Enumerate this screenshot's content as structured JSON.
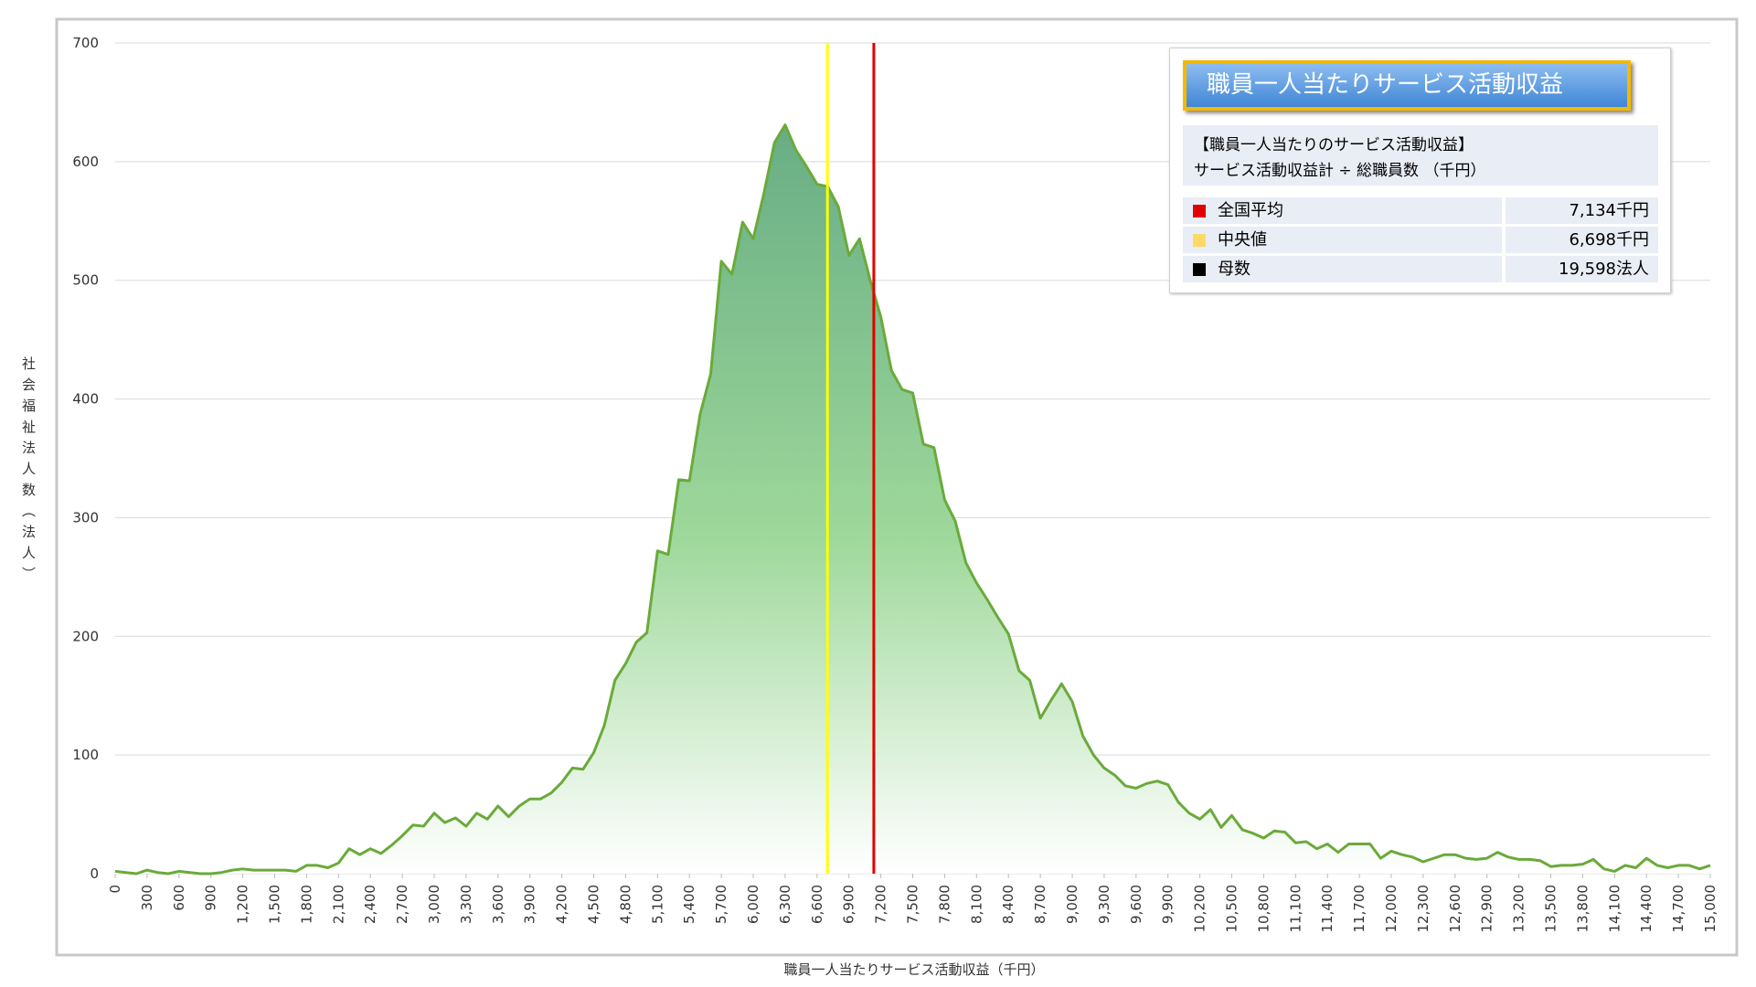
{
  "chart_data": {
    "type": "area",
    "x_label": "職員一人当たりサービス活動収益（千円）",
    "y_label": "社会福祉法人数（法人）",
    "x": [
      0,
      100,
      200,
      300,
      400,
      500,
      600,
      700,
      800,
      900,
      1000,
      1100,
      1200,
      1300,
      1400,
      1500,
      1600,
      1700,
      1800,
      1900,
      2000,
      2100,
      2200,
      2300,
      2400,
      2500,
      2600,
      2700,
      2800,
      2900,
      3000,
      3100,
      3200,
      3300,
      3400,
      3500,
      3600,
      3700,
      3800,
      3900,
      4000,
      4100,
      4200,
      4300,
      4400,
      4500,
      4600,
      4700,
      4800,
      4900,
      5000,
      5100,
      5200,
      5300,
      5400,
      5500,
      5600,
      5700,
      5800,
      5900,
      6000,
      6100,
      6200,
      6300,
      6400,
      6500,
      6600,
      6700,
      6800,
      6900,
      7000,
      7100,
      7200,
      7300,
      7400,
      7500,
      7600,
      7700,
      7800,
      7900,
      8000,
      8100,
      8200,
      8300,
      8400,
      8500,
      8600,
      8700,
      8800,
      8900,
      9000,
      9100,
      9200,
      9300,
      9400,
      9500,
      9600,
      9700,
      9800,
      9900,
      10000,
      10100,
      10200,
      10300,
      10400,
      10500,
      10600,
      10700,
      10800,
      10900,
      11000,
      11100,
      11200,
      11300,
      11400,
      11500,
      11600,
      11700,
      11800,
      11900,
      12000,
      12100,
      12200,
      12300,
      12400,
      12500,
      12600,
      12700,
      12800,
      12900,
      13000,
      13100,
      13200,
      13300,
      13400,
      13500,
      13600,
      13700,
      13800,
      13900,
      14000,
      14100,
      14200,
      14300,
      14400,
      14500,
      14600,
      14700,
      14800,
      14900,
      15000
    ],
    "values": [
      2,
      1,
      0,
      3,
      1,
      0,
      2,
      1,
      0,
      0,
      1,
      3,
      4,
      3,
      3,
      3,
      3,
      2,
      7,
      7,
      5,
      9,
      21,
      16,
      21,
      17,
      24,
      32,
      41,
      40,
      51,
      43,
      47,
      40,
      51,
      46,
      57,
      48,
      57,
      63,
      63,
      68,
      77,
      89,
      88,
      102,
      125,
      163,
      177,
      195,
      203,
      272,
      269,
      332,
      331,
      387,
      421,
      516,
      505,
      549,
      535,
      573,
      616,
      631,
      610,
      596,
      581,
      579,
      562,
      521,
      535,
      500,
      469,
      424,
      408,
      405,
      362,
      359,
      315,
      297,
      262,
      245,
      231,
      216,
      202,
      171,
      163,
      131,
      146,
      160,
      145,
      116,
      100,
      89,
      83,
      74,
      72,
      76,
      78,
      75,
      60,
      51,
      46,
      54,
      39,
      49,
      37,
      34,
      30,
      36,
      35,
      26,
      27,
      21,
      25,
      18,
      25,
      25,
      25,
      13,
      19,
      16,
      14,
      10,
      13,
      16,
      16,
      13,
      12,
      13,
      18,
      14,
      12,
      12,
      11,
      6,
      7,
      7,
      8,
      12,
      4,
      2,
      7,
      5,
      13,
      7,
      5,
      7,
      7,
      4,
      7
    ],
    "color": "#6aaa3a",
    "xlim": [
      0,
      15000
    ],
    "ylim": [
      0,
      700
    ],
    "yticks": [
      0,
      100,
      200,
      300,
      400,
      500,
      600,
      700
    ],
    "xticks": [
      0,
      300,
      600,
      900,
      {
        "value": 1200,
        "label": "1,200"
      },
      {
        "value": 1500,
        "label": "1,500"
      },
      {
        "value": 1800,
        "label": "1,800"
      },
      {
        "value": 2100,
        "label": "2,100"
      },
      {
        "value": 2400,
        "label": "2,400"
      },
      {
        "value": 2700,
        "label": "2,700"
      },
      {
        "value": 3000,
        "label": "3,000"
      },
      {
        "value": 3300,
        "label": "3,300"
      },
      {
        "value": 3600,
        "label": "3,600"
      },
      {
        "value": 3900,
        "label": "3,900"
      },
      {
        "value": 4200,
        "label": "4,200"
      },
      {
        "value": 4500,
        "label": "4,500"
      },
      {
        "value": 4800,
        "label": "4,800"
      },
      {
        "value": 5100,
        "label": "5,100"
      },
      {
        "value": 5400,
        "label": "5,400"
      },
      {
        "value": 5700,
        "label": "5,700"
      },
      {
        "value": 6000,
        "label": "6,000"
      },
      {
        "value": 6300,
        "label": "6,300"
      },
      {
        "value": 6600,
        "label": "6,600"
      },
      {
        "value": 6900,
        "label": "6,900"
      },
      {
        "value": 7200,
        "label": "7,200"
      },
      {
        "value": 7500,
        "label": "7,500"
      },
      {
        "value": 7800,
        "label": "7,800"
      },
      {
        "value": 8100,
        "label": "8,100"
      },
      {
        "value": 8400,
        "label": "8,400"
      },
      {
        "value": 8700,
        "label": "8,700"
      },
      {
        "value": 9000,
        "label": "9,000"
      },
      {
        "value": 9300,
        "label": "9,300"
      },
      {
        "value": 9600,
        "label": "9,600"
      },
      {
        "value": 9900,
        "label": "9,900"
      },
      {
        "value": 10200,
        "label": "10,200"
      },
      {
        "value": 10500,
        "label": "10,500"
      },
      {
        "value": 10800,
        "label": "10,800"
      },
      {
        "value": 11100,
        "label": "11,100"
      },
      {
        "value": 11400,
        "label": "11,400"
      },
      {
        "value": 11700,
        "label": "11,700"
      },
      {
        "value": 12000,
        "label": "12,000"
      },
      {
        "value": 12300,
        "label": "12,300"
      },
      {
        "value": 12600,
        "label": "12,600"
      },
      {
        "value": 12900,
        "label": "12,900"
      },
      {
        "value": 13200,
        "label": "13,200"
      },
      {
        "value": 13500,
        "label": "13,500"
      },
      {
        "value": 13800,
        "label": "13,800"
      },
      {
        "value": 14100,
        "label": "14,100"
      },
      {
        "value": 14400,
        "label": "14,400"
      },
      {
        "value": 14700,
        "label": "14,700"
      },
      {
        "value": 15000,
        "label": "15,000"
      }
    ],
    "grid": true,
    "legend": {
      "title": "職員一人当たりサービス活動収益",
      "description": [
        "【職員一人当たりのサービス活動収益】",
        "サービス活動収益計 ÷ 総職員数 （千円）"
      ],
      "items": [
        {
          "name": "全国平均",
          "value": 7134,
          "value_label": "7,134千円",
          "color": "#e00000",
          "line": true
        },
        {
          "name": "中央値",
          "value": 6698,
          "value_label": "6,698千円",
          "color": "#ffff00",
          "swatch": "#ffd966",
          "line": true
        },
        {
          "name": "母数",
          "value": 19598,
          "value_label": "19,598法人",
          "color": "#000000",
          "line": false
        }
      ]
    }
  }
}
